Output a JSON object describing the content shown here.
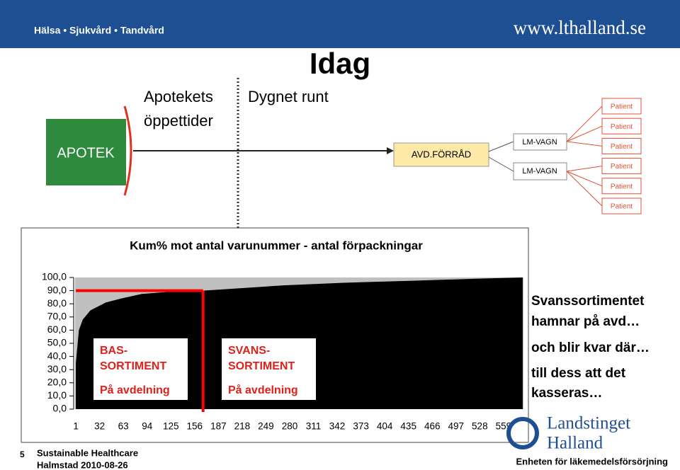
{
  "header": {
    "left": "Hälsa • Sjukvård • Tandvård",
    "right": "www.lthalland.se"
  },
  "title": "Idag",
  "flow": {
    "apotek": "APOTEK",
    "hours_label": [
      "Apotekets",
      "öppettider"
    ],
    "hours_value": "Dygnet runt",
    "storage": "AVD.FÖRRÅD",
    "carts": [
      "LM-VAGN",
      "LM-VAGN"
    ],
    "patients": [
      "Patient",
      "Patient",
      "Patient",
      "Patient",
      "Patient",
      "Patient"
    ]
  },
  "chart_data": {
    "type": "area",
    "title": "Kum% mot antal varunummer - antal förpackningar",
    "color": "#000000",
    "background": "#c0c0c0",
    "x": [
      1,
      5,
      10,
      20,
      40,
      60,
      87,
      120,
      167,
      220,
      272,
      350,
      440,
      520,
      584
    ],
    "values": [
      35,
      60,
      68,
      75,
      81,
      84,
      87.5,
      89,
      90,
      92,
      94,
      96,
      97.5,
      99,
      100
    ],
    "xlim": [
      0,
      585
    ],
    "xticks": [
      1,
      32,
      63,
      94,
      125,
      156,
      187,
      218,
      249,
      280,
      311,
      342,
      373,
      404,
      435,
      466,
      497,
      528,
      559
    ],
    "ylim": [
      0,
      100
    ],
    "yticks": [
      {
        "value": 0,
        "label": "0,0"
      },
      {
        "value": 10,
        "label": "10,0"
      },
      {
        "value": 20,
        "label": "20,0"
      },
      {
        "value": 30,
        "label": "30,0"
      },
      {
        "value": 40,
        "label": "40,0"
      },
      {
        "value": 50,
        "label": "50,0"
      },
      {
        "value": 60,
        "label": "60,0"
      },
      {
        "value": 70,
        "label": "70,0"
      },
      {
        "value": 80,
        "label": "80,0"
      },
      {
        "value": 90,
        "label": "90,0"
      },
      {
        "value": 100,
        "label": "100,0"
      }
    ],
    "threshold": {
      "x": 167,
      "y": 90,
      "color": "#ff0000"
    },
    "annotations": [
      {
        "lines": [
          "BAS-",
          "SORTIMENT"
        ],
        "note": "På avdelning"
      },
      {
        "lines": [
          "SVANS-",
          "SORTIMENT"
        ],
        "note": "På avdelning"
      }
    ]
  },
  "side_text": [
    "Svanssortimentet",
    "hamnar på avd…",
    "och blir kvar där…",
    "till dess att det",
    "kasseras…"
  ],
  "footer": {
    "page": "5",
    "line1": "Sustainable Healthcare",
    "line2": "Halmstad 2010-08-26",
    "logo": [
      "Landstinget",
      "Halland"
    ],
    "unit": "Enheten för läkemedelsförsörjning"
  }
}
